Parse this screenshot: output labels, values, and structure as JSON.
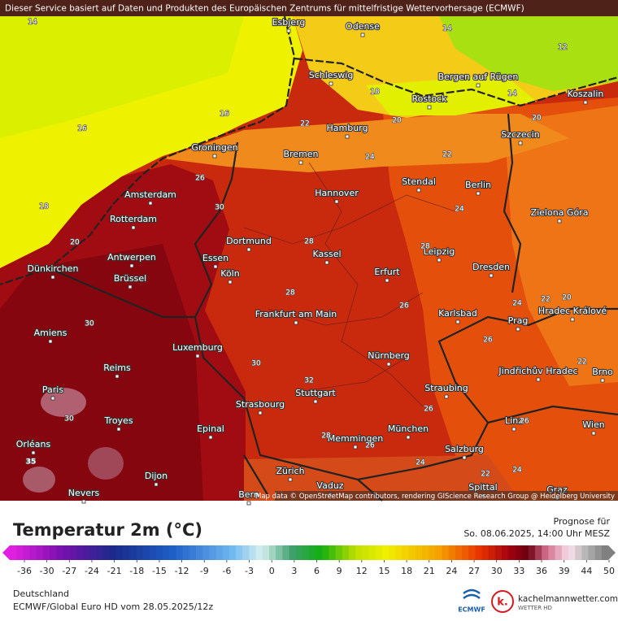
{
  "header": {
    "notice": "Dieser Service basiert auf Daten und Produkten des Europäischen Zentrums für mittelfristige Wettervorhersage (ECMWF)"
  },
  "map": {
    "cities": [
      "Esbjerg",
      "Odense",
      "Schleswig",
      "Bergen auf Rügen",
      "Rostock",
      "Koszalin",
      "Hamburg",
      "Szczecin",
      "Groningen",
      "Bremen",
      "Amsterdam",
      "Hannover",
      "Stendal",
      "Berlin",
      "Zielona Góra",
      "Rotterdam",
      "Dortmund",
      "Essen",
      "Leipzig",
      "Antwerpen",
      "Kassel",
      "Köln",
      "Erfurt",
      "Dresden",
      "Dünkirchen",
      "Brüssel",
      "Frankfurt am Main",
      "Karlsbad",
      "Prag",
      "Hradec Králové",
      "Amiens",
      "Luxemburg",
      "Nürnberg",
      "Jindřichův Hradec",
      "Brno",
      "Reims",
      "Paris",
      "Stuttgart",
      "Straubing",
      "Strasbourg",
      "Troyes",
      "München",
      "Linz",
      "Wien",
      "Epinal",
      "Memmingen",
      "Orléans",
      "Salzburg",
      "Zürich",
      "Vaduz",
      "Dijon",
      "Nevers",
      "Bern",
      "Spittal",
      "Graz"
    ],
    "isotherm_labels": [
      14,
      16,
      16,
      18,
      20,
      22,
      24,
      22,
      20,
      18,
      12,
      14,
      14,
      20,
      26,
      30,
      28,
      28,
      24,
      28,
      26,
      24,
      22,
      20,
      30,
      30,
      32,
      26,
      22,
      35,
      28,
      26,
      24,
      22,
      24,
      26,
      30,
      26
    ],
    "attribution": "Map data © OpenStreetMap contributors, rendering GIScience Research Group @ Heidelberg University"
  },
  "legend": {
    "title": "Temperatur 2m (°C)",
    "forecast_label": "Prognose für",
    "forecast_time": "So. 08.06.2025, 14:00 Uhr MESZ",
    "ticks": [
      -36,
      -30,
      -27,
      -24,
      -21,
      -18,
      -15,
      -12,
      -9,
      -6,
      -3,
      0,
      3,
      6,
      9,
      12,
      15,
      18,
      21,
      24,
      27,
      30,
      33,
      36,
      39,
      44,
      50
    ]
  },
  "footer": {
    "region": "Deutschland",
    "model_run": "ECMWF/Global Euro HD vom  28.05.2025/12z",
    "ecmwf_logo": "ECMWF",
    "brand_letter": "k.",
    "brand_site": "kachelmannwetter.com",
    "brand_tag": "WETTER HD"
  }
}
